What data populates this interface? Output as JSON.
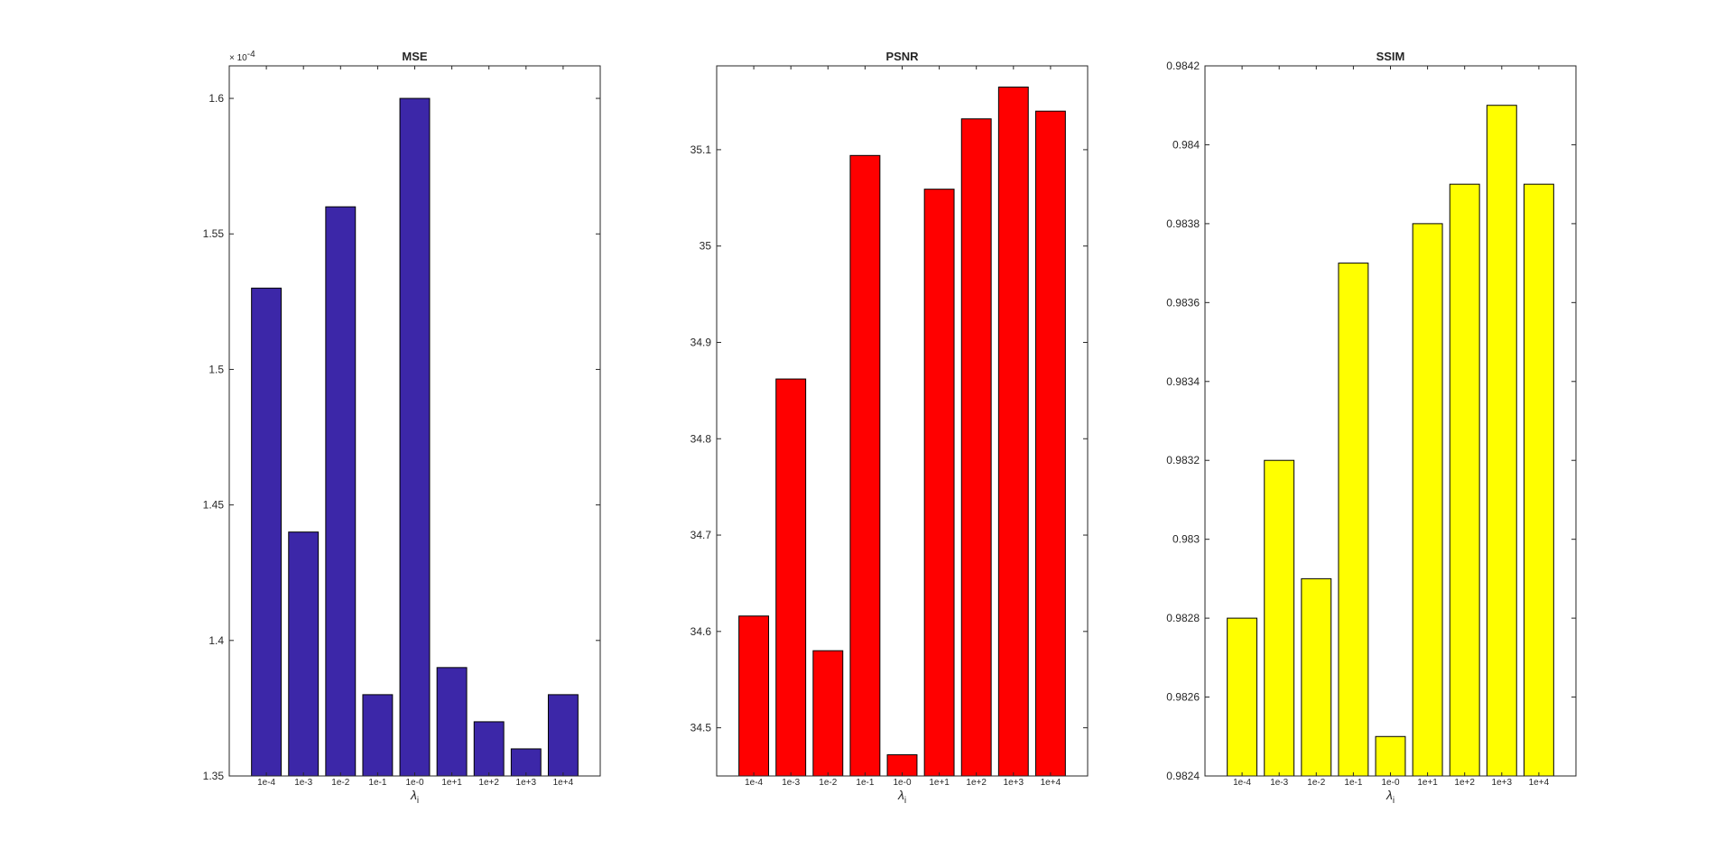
{
  "chart_data": [
    {
      "type": "bar",
      "title": "MSE",
      "categories": [
        "1e-4",
        "1e-3",
        "1e-2",
        "1e-1",
        "1e-0",
        "1e+1",
        "1e+2",
        "1e+3",
        "1e+4"
      ],
      "values": [
        0.000153,
        0.000144,
        0.000156,
        0.000138,
        0.00016,
        0.000139,
        0.000137,
        0.000136,
        0.000138
      ],
      "ylim": [
        0.000135,
        0.0001612
      ],
      "yticks": [
        1.35,
        1.4,
        1.45,
        1.5,
        1.55,
        1.6
      ],
      "ytick_labels": [
        "1.35",
        "1.4",
        "1.45",
        "1.5",
        "1.55",
        "1.6"
      ],
      "y_exponent": {
        "base": "× 10",
        "power": "-4"
      },
      "xlabel": {
        "symbol": "λ",
        "subscript": "i"
      },
      "ylabel": "",
      "bar_color": "#3c27a8",
      "grid": false
    },
    {
      "type": "bar",
      "title": "PSNR",
      "categories": [
        "1e-4",
        "1e-3",
        "1e-2",
        "1e-1",
        "1e-0",
        "1e+1",
        "1e+2",
        "1e+3",
        "1e+4"
      ],
      "values": [
        34.616,
        34.862,
        34.58,
        35.094,
        34.472,
        35.059,
        35.132,
        35.165,
        35.14
      ],
      "ylim": [
        34.45,
        35.187
      ],
      "yticks": [
        34.5,
        34.6,
        34.7,
        34.8,
        34.9,
        35.0,
        35.1
      ],
      "ytick_labels": [
        "34.5",
        "34.6",
        "34.7",
        "34.8",
        "34.9",
        "35",
        "35.1"
      ],
      "xlabel": {
        "symbol": "λ",
        "subscript": "i"
      },
      "ylabel": "",
      "bar_color": "#ff0000",
      "grid": false
    },
    {
      "type": "bar",
      "title": "SSIM",
      "categories": [
        "1e-4",
        "1e-3",
        "1e-2",
        "1e-1",
        "1e-0",
        "1e+1",
        "1e+2",
        "1e+3",
        "1e+4"
      ],
      "values": [
        0.9828,
        0.9832,
        0.9829,
        0.9837,
        0.9825,
        0.9838,
        0.9839,
        0.9841,
        0.9839
      ],
      "ylim": [
        0.9824,
        0.9842
      ],
      "yticks": [
        0.9824,
        0.9826,
        0.9828,
        0.983,
        0.9832,
        0.9834,
        0.9836,
        0.9838,
        0.984,
        0.9842
      ],
      "ytick_labels": [
        "0.9824",
        "0.9826",
        "0.9828",
        "0.983",
        "0.9832",
        "0.9834",
        "0.9836",
        "0.9838",
        "0.984",
        "0.9842"
      ],
      "xlabel": {
        "symbol": "λ",
        "subscript": "i"
      },
      "ylabel": "",
      "bar_color": "#ffff00",
      "grid": false
    }
  ]
}
